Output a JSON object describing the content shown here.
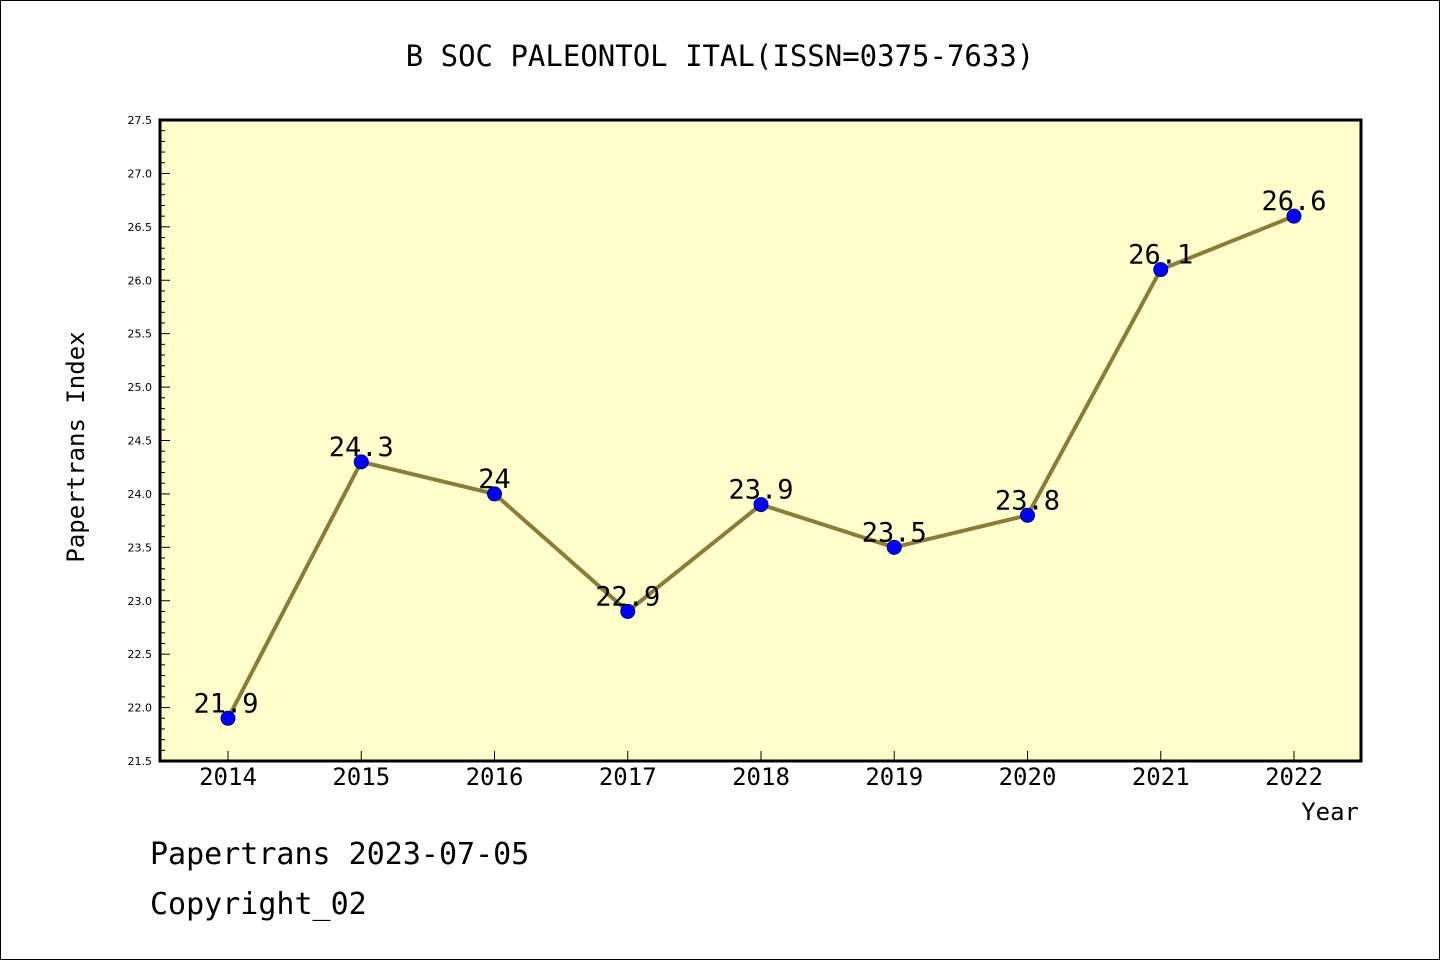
{
  "footer": {
    "line1": "Papertrans 2023-07-05",
    "line2": "Copyright_02"
  },
  "chart_data": {
    "type": "line",
    "title": "B SOC PALEONTOL ITAL(ISSN=0375-7633)",
    "xlabel": "Year",
    "ylabel": "Papertrans Index",
    "categories": [
      "2014",
      "2015",
      "2016",
      "2017",
      "2018",
      "2019",
      "2020",
      "2021",
      "2022"
    ],
    "series": [
      {
        "values": [
          21.9,
          24.3,
          24,
          22.9,
          23.9,
          23.5,
          23.8,
          26.1,
          26.6
        ],
        "labels": [
          "21.9",
          "24.3",
          "24",
          "22.9",
          "23.9",
          "23.5",
          "23.8",
          "26.1",
          "26.6"
        ]
      }
    ],
    "ylim": [
      21.5,
      27.5
    ],
    "yticks": [
      "21.5",
      "22.0",
      "22.5",
      "23.0",
      "23.5",
      "24.0",
      "24.5",
      "25.0",
      "25.5",
      "26.0",
      "26.5",
      "27.0",
      "27.5"
    ],
    "grid": false,
    "colors": {
      "plot_background": "#ffffcc",
      "line": "#8b7d37",
      "marker_fill": "#0000ff",
      "marker_edge": "#000080"
    }
  }
}
